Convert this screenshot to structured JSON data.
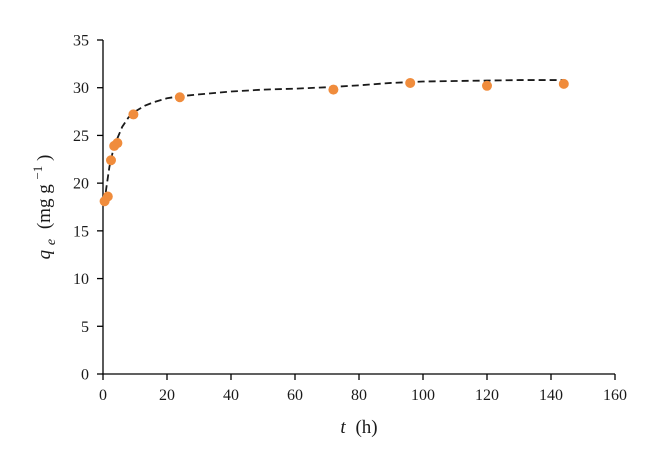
{
  "chart_data": {
    "type": "scatter",
    "title": "",
    "x_ticks": [
      "0",
      "20",
      "40",
      "60",
      "80",
      "100",
      "120",
      "140",
      "160"
    ],
    "y_ticks": [
      "0",
      "5",
      "10",
      "15",
      "20",
      "25",
      "30",
      "35"
    ],
    "xlim": [
      0,
      160
    ],
    "ylim": [
      0,
      35
    ],
    "grid": false,
    "xlabel": {
      "var": "t",
      "unit": "(h)"
    },
    "ylabel": {
      "var": "q",
      "sub": "e",
      "unit_prefix": "(mg g",
      "sup": "−1",
      "unit_suffix": ")"
    },
    "series": [
      {
        "kind": "points",
        "color": "#f08c3c",
        "x": [
          0.5,
          1.5,
          2.5,
          3.5,
          4.5,
          9.5,
          24,
          72,
          96,
          120,
          144
        ],
        "y": [
          18.1,
          18.6,
          22.4,
          23.9,
          24.2,
          27.2,
          29.0,
          29.8,
          30.5,
          30.2,
          30.4
        ]
      },
      {
        "kind": "fit",
        "color": "#1a1a1a",
        "x": [
          0.5,
          1,
          2,
          3,
          4,
          6,
          8,
          10,
          13,
          16,
          20,
          24,
          30,
          40,
          50,
          60,
          70,
          80,
          90,
          100,
          110,
          120,
          130,
          144
        ],
        "y": [
          17.9,
          19.4,
          21.7,
          23.2,
          24.3,
          25.9,
          26.9,
          27.5,
          28.1,
          28.5,
          28.9,
          29.1,
          29.3,
          29.6,
          29.8,
          29.9,
          30.05,
          30.25,
          30.5,
          30.65,
          30.7,
          30.75,
          30.8,
          30.8
        ]
      }
    ]
  }
}
